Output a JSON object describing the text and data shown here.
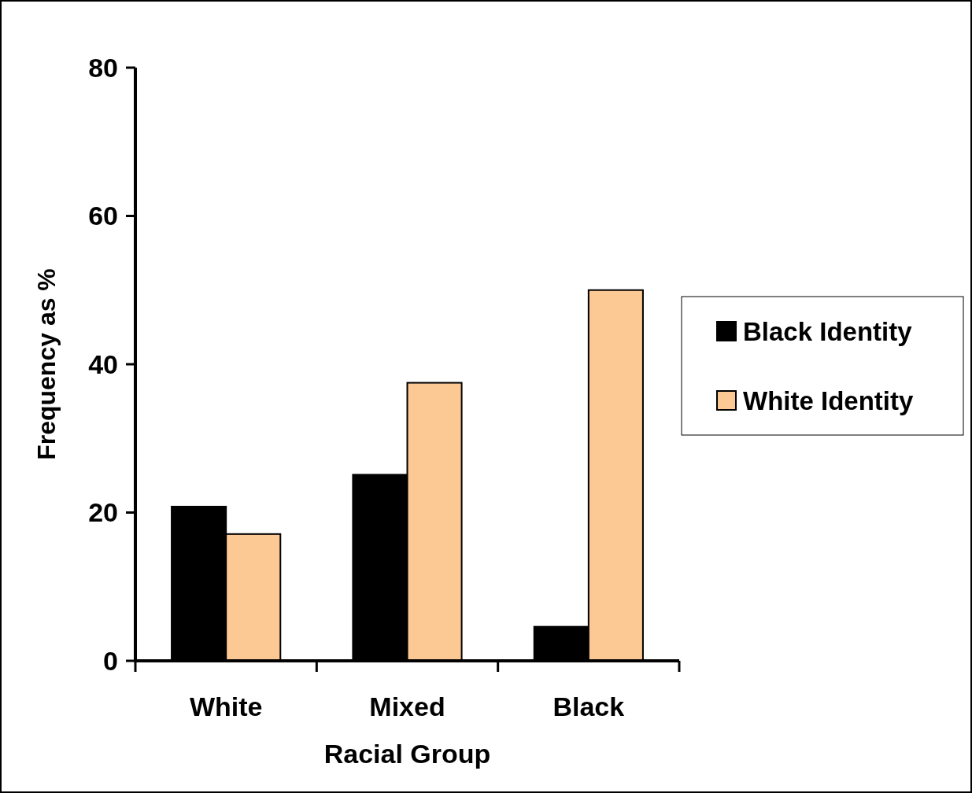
{
  "chart_data": {
    "type": "bar",
    "xlabel": "Racial Group",
    "ylabel": "Frequency as %",
    "categories": [
      "White",
      "Mixed",
      "Black"
    ],
    "series": [
      {
        "name": "Black Identity",
        "color": "#000000",
        "values": [
          20.8,
          25.1,
          4.6
        ]
      },
      {
        "name": "White Identity",
        "color": "#fcc893",
        "values": [
          17.1,
          37.5,
          50.0
        ]
      }
    ],
    "ylim": [
      0,
      80
    ],
    "yticks": [
      0,
      20,
      40,
      60,
      80
    ],
    "grid": false,
    "legend": "right"
  }
}
